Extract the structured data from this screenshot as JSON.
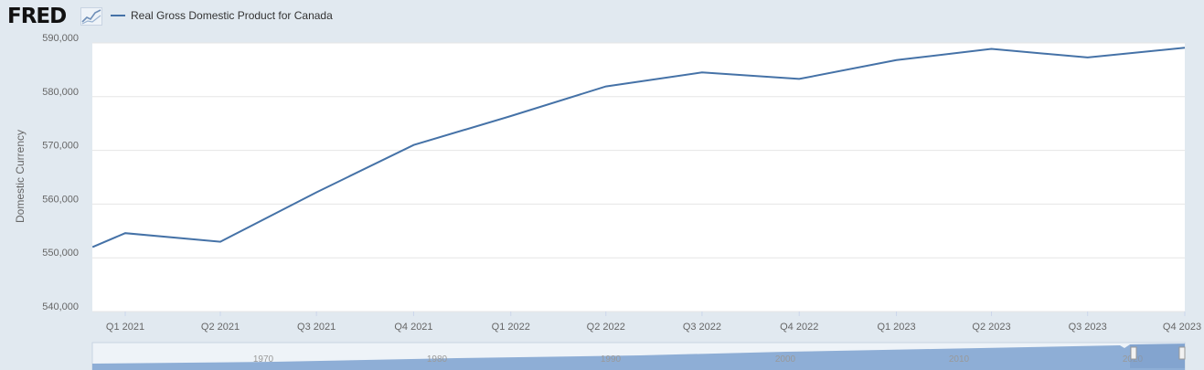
{
  "header": {
    "logo_text": "FRED",
    "logo_icon": "line-chart-icon",
    "legend_label": "Real Gross Domestic Product for Canada",
    "legend_color": "#4572a7"
  },
  "colors": {
    "series": "#4572a7",
    "background": "#e1e9f0",
    "plot": "#ffffff",
    "grid": "#e6e6e6",
    "navigator_fill": "#8eaed6"
  },
  "chart_data": {
    "type": "line",
    "xlabel": "",
    "ylabel": "Domestic Currency",
    "ylim": [
      540000,
      590000
    ],
    "yticks": [
      540000,
      550000,
      560000,
      570000,
      580000,
      590000
    ],
    "ytick_labels": [
      "540,000",
      "550,000",
      "560,000",
      "570,000",
      "580,000",
      "590,000"
    ],
    "categories": [
      "Q1 2021",
      "Q2 2021",
      "Q3 2021",
      "Q4 2021",
      "Q1 2022",
      "Q2 2022",
      "Q3 2022",
      "Q4 2022",
      "Q1 2023",
      "Q2 2023",
      "Q3 2023",
      "Q4 2023"
    ],
    "series": [
      {
        "name": "Real Gross Domestic Product for Canada",
        "x": [
          "2020-12-01",
          "2021-01-01",
          "2021-04-01",
          "2021-07-01",
          "2021-10-01",
          "2022-01-01",
          "2022-04-01",
          "2022-07-01",
          "2022-10-01",
          "2023-01-01",
          "2023-04-01",
          "2023-07-01",
          "2023-10-01"
        ],
        "values": [
          552000,
          554600,
          553000,
          562200,
          571000,
          576400,
          581900,
          584500,
          583300,
          586800,
          588900,
          587300,
          589100
        ]
      }
    ],
    "grid": true,
    "legend": "top-left",
    "navigator": {
      "labels": [
        "1970",
        "1980",
        "1990",
        "2000",
        "2010",
        "2020"
      ]
    }
  }
}
